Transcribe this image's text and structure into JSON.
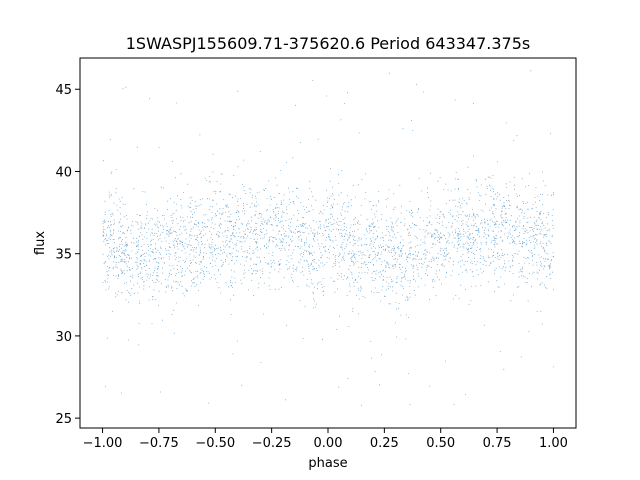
{
  "chart_data": {
    "type": "scatter",
    "title": "1SWASPJ155609.71-375620.6 Period 643347.375s",
    "xlabel": "phase",
    "ylabel": "flux",
    "xlim": [
      -1.1,
      1.1
    ],
    "ylim": [
      24.4,
      46.9
    ],
    "x_ticks": [
      -1.0,
      -0.75,
      -0.5,
      -0.25,
      0.0,
      0.25,
      0.5,
      0.75,
      1.0
    ],
    "x_tick_labels": [
      "−1.00",
      "−0.75",
      "−0.50",
      "−0.25",
      "0.00",
      "0.25",
      "0.50",
      "0.75",
      "1.00"
    ],
    "y_ticks": [
      25,
      30,
      35,
      40,
      45
    ],
    "y_tick_labels": [
      "25",
      "30",
      "35",
      "40",
      "45"
    ],
    "grid": false,
    "marker_color": "#1f77b4",
    "series": [
      {
        "x_range": [
          -1.0,
          1.0
        ],
        "mean_profile": [
          [
            -1.0,
            35.6
          ],
          [
            -0.9,
            35.3
          ],
          [
            -0.8,
            35.0
          ],
          [
            -0.7,
            35.3
          ],
          [
            -0.6,
            35.6
          ],
          [
            -0.5,
            36.0
          ],
          [
            -0.4,
            36.1
          ],
          [
            -0.3,
            36.1
          ],
          [
            -0.2,
            36.5
          ],
          [
            -0.1,
            35.5
          ],
          [
            0.0,
            35.8
          ],
          [
            0.1,
            35.4
          ],
          [
            0.2,
            35.2
          ],
          [
            0.3,
            35.2
          ],
          [
            0.4,
            35.3
          ],
          [
            0.5,
            35.8
          ],
          [
            0.6,
            36.2
          ],
          [
            0.7,
            36.5
          ],
          [
            0.8,
            36.3
          ],
          [
            0.9,
            35.9
          ],
          [
            1.0,
            35.6
          ]
        ],
        "core_spread": [
          31.5,
          39.5
        ],
        "outlier_range": [
          25.5,
          46.2
        ]
      }
    ]
  }
}
